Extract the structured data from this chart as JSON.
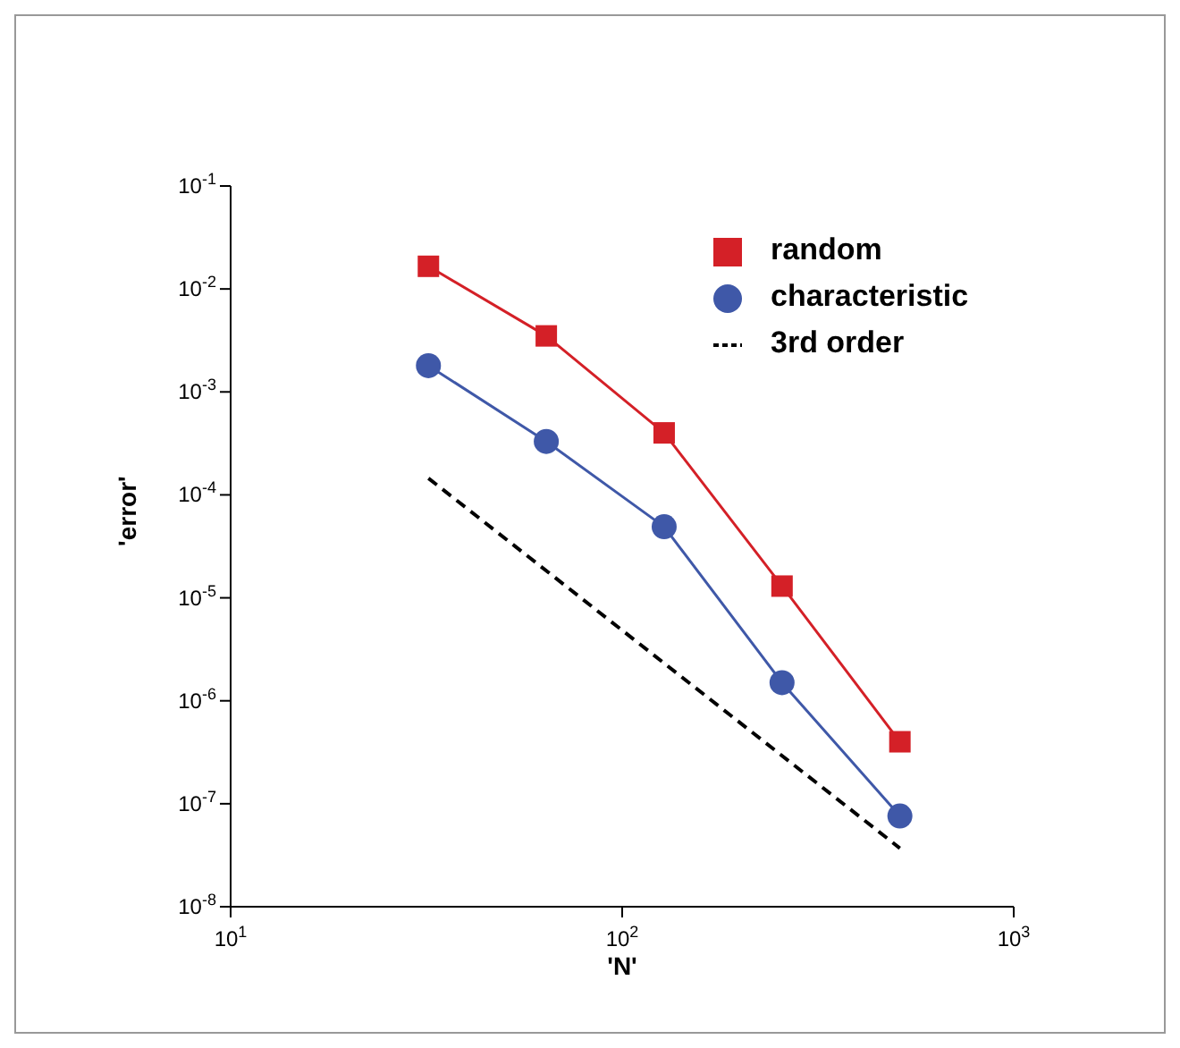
{
  "chart_data": {
    "type": "line",
    "xlabel": "'N'",
    "ylabel": "'error'",
    "log": "xy",
    "grid": false,
    "legend": "top right",
    "line_style": "solid",
    "xlim": [
      10,
      1000
    ],
    "xticks": [
      {
        "value": 10,
        "label": "10$^{1}$"
      },
      {
        "value": 100,
        "label": "10$^{2}$"
      },
      {
        "value": 1000,
        "label": "10$^{3}$"
      }
    ],
    "ylim": [
      1e-08,
      0.1
    ],
    "yticks": [
      {
        "value": 1e-08,
        "label": "10$^{-8}$"
      },
      {
        "value": 1e-07,
        "label": "10$^{-7}$"
      },
      {
        "value": 1e-06,
        "label": "10$^{-6}$"
      },
      {
        "value": 1e-05,
        "label": "10$^{-5}$"
      },
      {
        "value": 0.0001,
        "label": "10$^{-4}$"
      },
      {
        "value": 0.001,
        "label": "10$^{-3}$"
      },
      {
        "value": 0.01,
        "label": "10$^{-2}$"
      },
      {
        "value": 0.1,
        "label": "10$^{-1}$"
      }
    ],
    "series": [
      {
        "name": "random",
        "color": "#d42027",
        "marker": "square",
        "x": [
          32,
          64,
          128,
          256,
          512
        ],
        "values": [
          0.0166,
          0.0035,
          0.0004,
          1.3e-05,
          4e-07
        ]
      },
      {
        "name": "characteristic",
        "color": "#3f58a8",
        "marker": "circle",
        "x": [
          32,
          64,
          128,
          256,
          512
        ],
        "values": [
          0.0018,
          0.00033,
          4.9e-05,
          1.5e-06,
          7.6e-08
        ]
      },
      {
        "name": "3rd order",
        "color": "#000000",
        "marker": "none",
        "line_style": "dashed",
        "x": [
          32,
          512
        ],
        "values": [
          0.000145,
          3.7e-08
        ]
      }
    ]
  }
}
